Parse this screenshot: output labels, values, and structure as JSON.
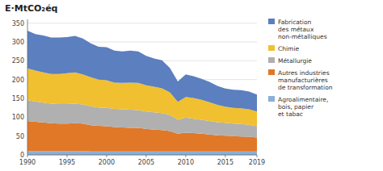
{
  "chart_data": {
    "type": "area",
    "stacked": true,
    "title": "E·MtCO₂éq",
    "x": [
      1990,
      1991,
      1992,
      1993,
      1994,
      1995,
      1996,
      1997,
      1998,
      1999,
      2000,
      2001,
      2002,
      2003,
      2004,
      2005,
      2006,
      2007,
      2008,
      2009,
      2010,
      2011,
      2012,
      2013,
      2014,
      2015,
      2016,
      2017,
      2018,
      2019
    ],
    "series": [
      {
        "name": "Agroalimentaire,\nbois, papier\net tabac",
        "color": "#8ab0d8",
        "values": [
          10,
          10,
          10,
          10,
          10,
          10,
          10,
          10,
          9,
          9,
          9,
          9,
          9,
          9,
          9,
          9,
          9,
          9,
          9,
          9,
          9,
          9,
          9,
          9,
          9,
          9,
          9,
          9,
          9,
          9
        ]
      },
      {
        "name": "Autres industries\nmanufacturières\nde transformation",
        "color": "#e07828",
        "values": [
          80,
          78,
          76,
          74,
          73,
          73,
          74,
          73,
          70,
          68,
          67,
          65,
          64,
          63,
          63,
          60,
          58,
          57,
          54,
          47,
          50,
          49,
          47,
          45,
          43,
          42,
          41,
          40,
          39,
          37
        ]
      },
      {
        "name": "Métallurgie",
        "color": "#b0b0b0",
        "values": [
          55,
          54,
          53,
          52,
          52,
          52,
          52,
          51,
          50,
          49,
          49,
          48,
          48,
          48,
          47,
          46,
          46,
          45,
          43,
          37,
          40,
          38,
          37,
          36,
          35,
          34,
          33,
          33,
          32,
          30
        ]
      },
      {
        "name": "Chimie",
        "color": "#f0c030",
        "values": [
          85,
          82,
          80,
          79,
          80,
          82,
          83,
          80,
          77,
          74,
          73,
          70,
          70,
          72,
          72,
          70,
          68,
          66,
          60,
          48,
          55,
          55,
          53,
          50,
          46,
          43,
          42,
          42,
          41,
          39
        ]
      },
      {
        "name": "Fabrication\ndes métaux\nnon-métalliques",
        "color": "#5b7fbf",
        "values": [
          100,
          97,
          98,
          97,
          97,
          96,
          97,
          95,
          90,
          87,
          88,
          85,
          84,
          85,
          84,
          78,
          75,
          74,
          65,
          54,
          60,
          58,
          56,
          54,
          50,
          48,
          48,
          48,
          47,
          45
        ]
      }
    ],
    "xlim": [
      1990,
      2019
    ],
    "xticks": [
      1990,
      1995,
      2000,
      2005,
      2010,
      2015,
      2019
    ],
    "ylim": [
      0,
      360
    ],
    "yticks": [
      0,
      50,
      100,
      150,
      200,
      250,
      300,
      350
    ],
    "grid": true,
    "legend": "right"
  }
}
